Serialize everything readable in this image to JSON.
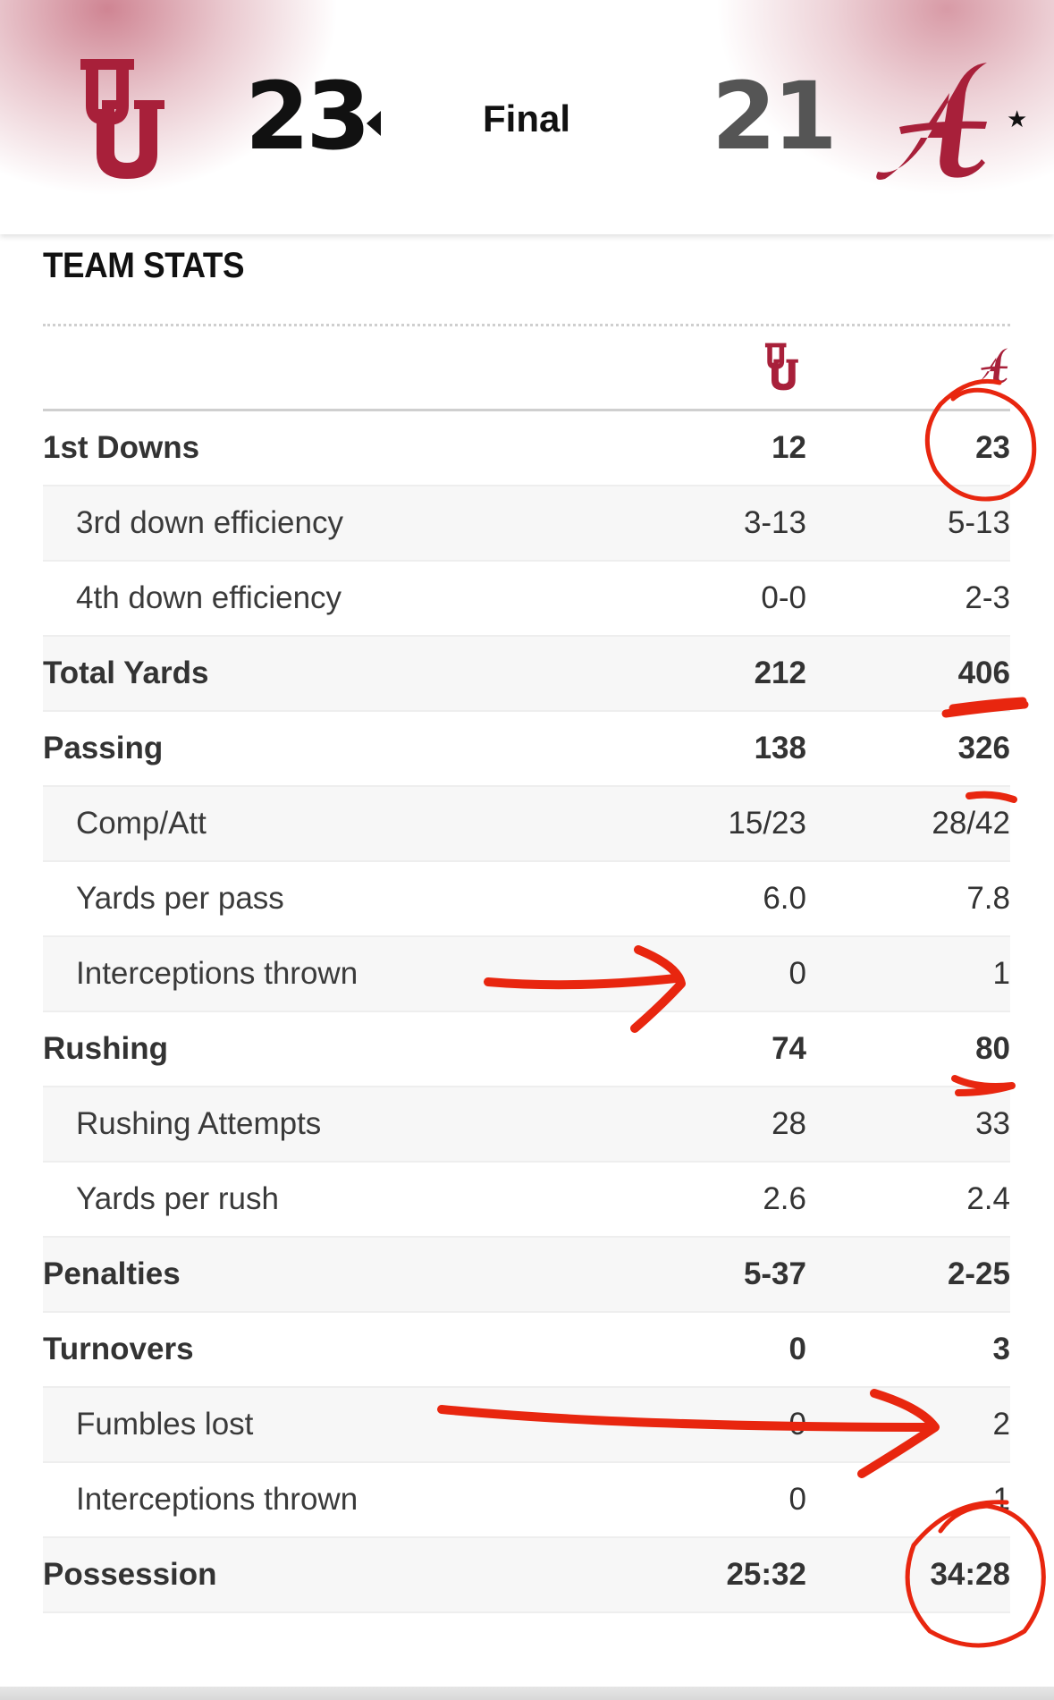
{
  "scoreboard": {
    "home_score": "23",
    "away_score": "21",
    "status": "Final",
    "home_team_logo": "ou-interlocking-logo",
    "away_team_logo": "alabama-script-a-logo",
    "winner_indicator": "left-triangle-icon",
    "rank_indicator": "star-icon",
    "team_color": "#A8203A"
  },
  "team_stats": {
    "title": "TEAM STATS",
    "rows": [
      {
        "label": "1st Downs",
        "home": "12",
        "away": "23",
        "kind": "main"
      },
      {
        "label": "3rd down efficiency",
        "home": "3-13",
        "away": "5-13",
        "kind": "sub"
      },
      {
        "label": "4th down efficiency",
        "home": "0-0",
        "away": "2-3",
        "kind": "sub"
      },
      {
        "label": "Total Yards",
        "home": "212",
        "away": "406",
        "kind": "main"
      },
      {
        "label": "Passing",
        "home": "138",
        "away": "326",
        "kind": "main"
      },
      {
        "label": "Comp/Att",
        "home": "15/23",
        "away": "28/42",
        "kind": "sub"
      },
      {
        "label": "Yards per pass",
        "home": "6.0",
        "away": "7.8",
        "kind": "sub"
      },
      {
        "label": "Interceptions thrown",
        "home": "0",
        "away": "1",
        "kind": "sub"
      },
      {
        "label": "Rushing",
        "home": "74",
        "away": "80",
        "kind": "main"
      },
      {
        "label": "Rushing Attempts",
        "home": "28",
        "away": "33",
        "kind": "sub"
      },
      {
        "label": "Yards per rush",
        "home": "2.6",
        "away": "2.4",
        "kind": "sub"
      },
      {
        "label": "Penalties",
        "home": "5-37",
        "away": "2-25",
        "kind": "main"
      },
      {
        "label": "Turnovers",
        "home": "0",
        "away": "3",
        "kind": "main"
      },
      {
        "label": "Fumbles lost",
        "home": "0",
        "away": "2",
        "kind": "sub"
      },
      {
        "label": "Interceptions thrown",
        "home": "0",
        "away": "1",
        "kind": "sub"
      },
      {
        "label": "Possession",
        "home": "25:32",
        "away": "34:28",
        "kind": "main"
      }
    ]
  },
  "annotations": {
    "ink_color": "#E8260F",
    "marks": [
      "circle-1st-downs-away",
      "underline-total-yards",
      "underline-passing",
      "arrow-interceptions",
      "underline-rushing",
      "arrow-fumbles-lost",
      "circle-possession-away"
    ]
  }
}
